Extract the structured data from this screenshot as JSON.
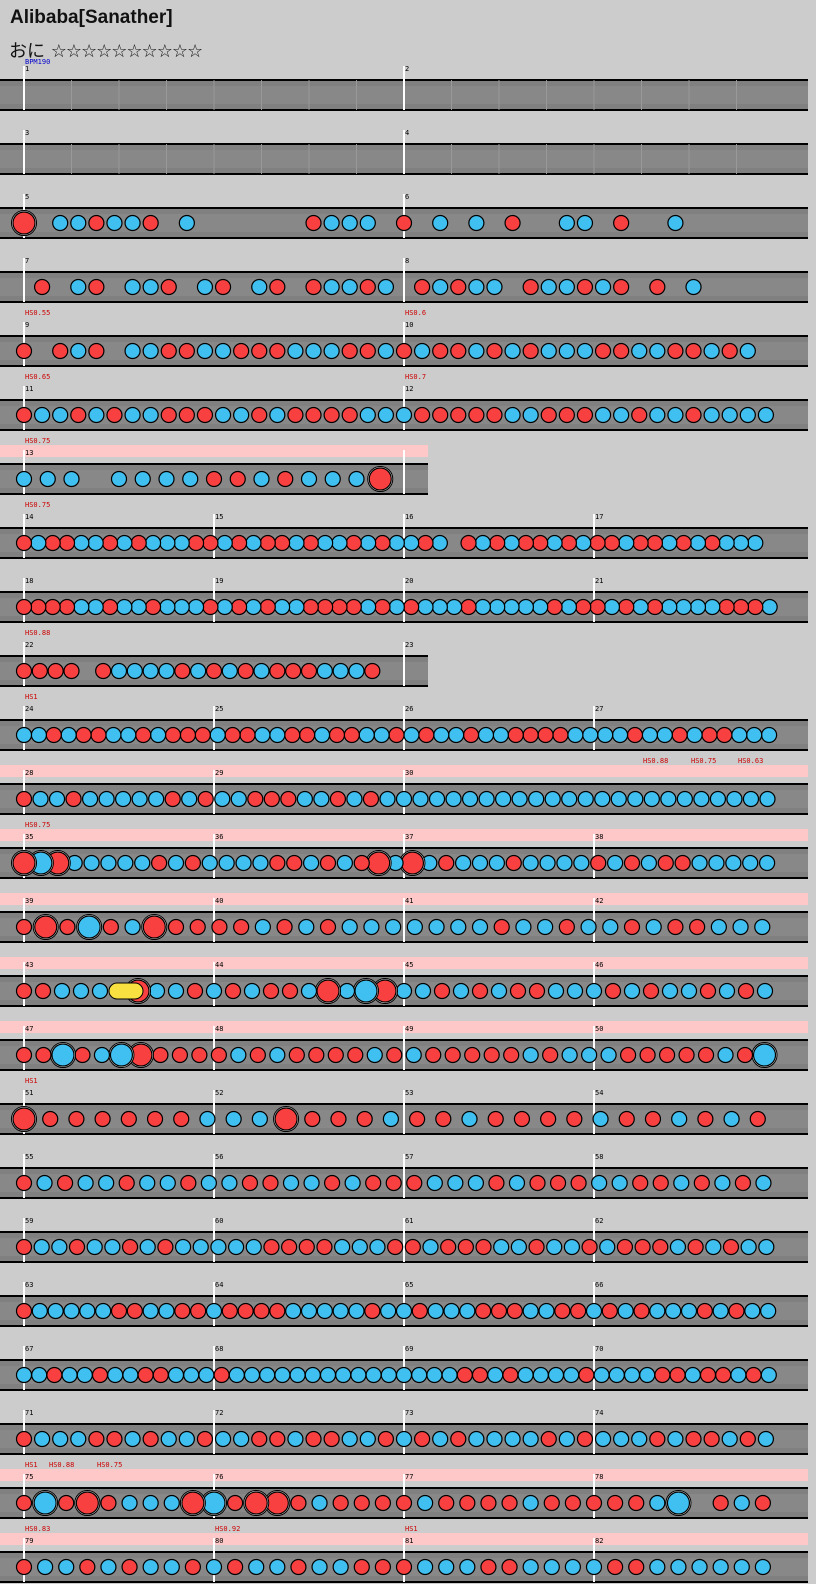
{
  "header": {
    "title": "Alibaba[Sanather]",
    "course": "おに",
    "stars": "☆☆☆☆☆☆☆☆☆☆"
  },
  "chart_data": {
    "type": "drum-chart",
    "bpm_label": "BPM190",
    "colors": {
      "don": "#f84040",
      "ka": "#40c0f0",
      "roll": "#f8e040",
      "lane": "#808080",
      "lane_mid": "#888888",
      "scroll_zone": "#ffc8c8",
      "border": "#000000",
      "barline": "#ffffff"
    },
    "measure_numbers": [
      "1",
      "2",
      "3",
      "4",
      "5",
      "6",
      "7",
      "8",
      "9",
      "10",
      "11",
      "12",
      "13",
      "14",
      "15",
      "16",
      "17",
      "18",
      "19",
      "20",
      "21",
      "22",
      "23",
      "24",
      "25",
      "26",
      "27",
      "28",
      "29",
      "30",
      "31",
      "32",
      "33",
      "34",
      "35",
      "36",
      "37",
      "38",
      "39",
      "40",
      "41",
      "42",
      "43",
      "44",
      "45",
      "46",
      "47",
      "48",
      "49",
      "50",
      "51",
      "52",
      "53",
      "54",
      "55",
      "56",
      "57",
      "58",
      "59",
      "60",
      "61",
      "62",
      "63",
      "64",
      "65",
      "66",
      "67",
      "68",
      "69",
      "70",
      "71",
      "72",
      "73",
      "74",
      "75",
      "76",
      "77",
      "78",
      "79",
      "80",
      "81",
      "82"
    ],
    "scroll_labels": [
      {
        "row": 4,
        "text": "HS0.55"
      },
      {
        "row": 4,
        "text": "HS0.6"
      },
      {
        "row": 5,
        "text": "HS0.65"
      },
      {
        "row": 5,
        "text": "HS0.7"
      },
      {
        "row": 6,
        "text": "HS0.75"
      },
      {
        "row": 7,
        "text": "HS0.75"
      },
      {
        "row": 9,
        "text": "HS0.88"
      },
      {
        "row": 10,
        "text": "HS1"
      },
      {
        "row": 11,
        "text": "HS0.88"
      },
      {
        "row": 11,
        "text": "HS0.75"
      },
      {
        "row": 11,
        "text": "HS0.63"
      },
      {
        "row": 12,
        "text": "HS0.75"
      },
      {
        "row": 16,
        "text": "HS1"
      },
      {
        "row": 22,
        "text": "HS1"
      },
      {
        "row": 22,
        "text": "HS0.88"
      },
      {
        "row": 22,
        "text": "HS0.75"
      },
      {
        "row": 23,
        "text": "HS0.83"
      },
      {
        "row": 23,
        "text": "HS0.92"
      },
      {
        "row": 23,
        "text": "HS1"
      }
    ],
    "scroll_zone_rows": [
      6,
      11,
      12,
      13,
      14,
      15,
      22,
      23
    ],
    "rows": [
      {
        "measures": [
          1,
          2
        ],
        "notes": ""
      },
      {
        "measures": [
          3,
          4
        ],
        "notes": ""
      },
      {
        "measures": [
          5,
          6
        ],
        "notes": "D0kkdkkd0k000000dkkk0d0k0k0d00kk0d00k00000"
      },
      {
        "measures": [
          7,
          8
        ],
        "notes": "0d0kd0kkd0kd0kd0dkkdk0dkdkk0dkkdkd0d0k0000"
      },
      {
        "measures": [
          9,
          10
        ],
        "notes": "d0dkd0kkddkkdddkkkddkdkddkdkdkkkddkkddkdk0"
      },
      {
        "measures": [
          11,
          12
        ],
        "notes": "dkkdkdkkdddkkdkddddkkkdddddkkdddkkdkkdkkkk"
      },
      {
        "measures": [
          13
        ],
        "notes": "kkk0kkkkddkdkkkD"
      },
      {
        "measures": [
          14,
          15,
          16,
          17
        ],
        "notes": "dkddkkdkdkkkddkdkddkdkkdkdkkdk0dkdkddkdkddkddkdkdkkk0"
      },
      {
        "measures": [
          18,
          19,
          20,
          21
        ],
        "notes": "ddddkkdkkdkkkdkdkdkkddddkdkdkkkdkkkkkdkddkdkdkkkkdddk"
      },
      {
        "measures": [
          22,
          23
        ],
        "notes": "dddd0dkkkkdkdkdkdddkkkd0"
      },
      {
        "measures": [
          24,
          25,
          26,
          27
        ],
        "notes": "kkdkddkkdkdddkddkkddkddkkdkdkkdkkddddkkkkdkkdkddkkk"
      },
      {
        "measures": [
          28,
          29,
          30
        ],
        "notes": "dkkdkkkkkdkdkkdddkkdkdkkkkkkkkkkkkkkkkkkkkkkkk"
      },
      {
        "measures": [
          35,
          36,
          37,
          38
        ],
        "notes": "DKDkkkkkdkdkkkkddkdkdDkDkdkkkdkkkkdkdkddkkkkk"
      },
      {
        "measures": [
          39,
          40,
          41,
          42
        ],
        "notes": "dDdKdkDddddkdkdkkkkkkkdkkdkkdkddkkk"
      },
      {
        "measures": [
          43,
          44,
          45,
          46
        ],
        "notes": "ddkkkRDkkdkdkddkDkKDkkdkdkddkkkdkdkkdkdk"
      },
      {
        "measures": [
          47,
          48,
          49,
          50
        ],
        "notes": "ddKdkKDddddkdkddddkdkdddddkdkkkdddddkdK"
      },
      {
        "measures": [
          51,
          52,
          53,
          54
        ],
        "notes": "DddddddkkkDdddkddkddddkddkdkd"
      },
      {
        "measures": [
          55,
          56,
          57,
          58
        ],
        "notes": "dkdkkdkkdkkddkkdkdddkkkdkdddkkddkdkdk"
      },
      {
        "measures": [
          59,
          60,
          61,
          62
        ],
        "notes": "dkkdkkdkdkkkkkddddkkkddkdddkkdkkdkdddkdkdkk"
      },
      {
        "measures": [
          63,
          64,
          65,
          66
        ],
        "notes": "dkkkkkddkkddkddddkkkkkdkkdkkkdddkkddkdkdkkkdkdkk"
      },
      {
        "measures": [
          67,
          68,
          69,
          70
        ],
        "notes": "kkdkkdkkddkkkdkkkkkkkkkkkkkkkddkdkkkkdkkkkddkddkdk"
      },
      {
        "measures": [
          71,
          72,
          73,
          74
        ],
        "notes": "dkkkddkdkkdkkddkddkkdkdkdkkkkdkdkkkdkddkdk"
      },
      {
        "measures": [
          75,
          76,
          77,
          78
        ],
        "notes": "dKdDdkkkDKdDDdkddddkddddkdddddkK0dkd"
      },
      {
        "measures": [
          79,
          80,
          81,
          82
        ],
        "notes": "dkkdkdkkdkdkkdkkdddkkkddkkkkddkkkkkk"
      }
    ]
  }
}
